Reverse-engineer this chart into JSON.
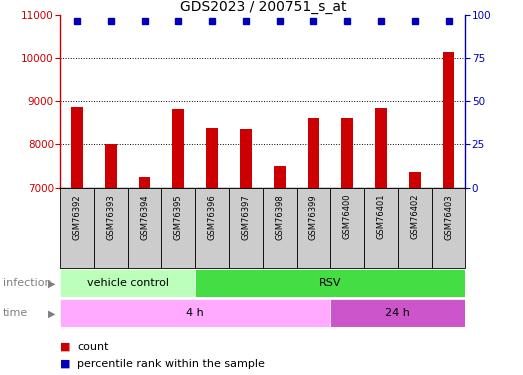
{
  "title": "GDS2023 / 200751_s_at",
  "samples": [
    "GSM76392",
    "GSM76393",
    "GSM76394",
    "GSM76395",
    "GSM76396",
    "GSM76397",
    "GSM76398",
    "GSM76399",
    "GSM76400",
    "GSM76401",
    "GSM76402",
    "GSM76403"
  ],
  "counts": [
    8870,
    8020,
    7250,
    8830,
    8380,
    8360,
    7500,
    8610,
    8610,
    8840,
    7350,
    10150
  ],
  "ylim_left": [
    7000,
    11000
  ],
  "ylim_right": [
    0,
    100
  ],
  "yticks_left": [
    7000,
    8000,
    9000,
    10000,
    11000
  ],
  "yticks_right": [
    0,
    25,
    50,
    75,
    100
  ],
  "bar_color": "#cc0000",
  "percentile_color": "#0000bb",
  "infection_groups": [
    {
      "label": "vehicle control",
      "start": 0,
      "end": 4,
      "color": "#bbffbb"
    },
    {
      "label": "RSV",
      "start": 4,
      "end": 12,
      "color": "#44dd44"
    }
  ],
  "time_groups": [
    {
      "label": "4 h",
      "start": 0,
      "end": 8,
      "color": "#ffaaff"
    },
    {
      "label": "24 h",
      "start": 8,
      "end": 12,
      "color": "#cc55cc"
    }
  ],
  "infection_label": "infection",
  "time_label": "time",
  "legend_count_label": "count",
  "legend_percentile_label": "percentile rank within the sample",
  "title_fontsize": 10,
  "axis_color_left": "#cc0000",
  "axis_color_right": "#0000bb",
  "tick_bg_color": "#cccccc",
  "bar_width": 0.35
}
